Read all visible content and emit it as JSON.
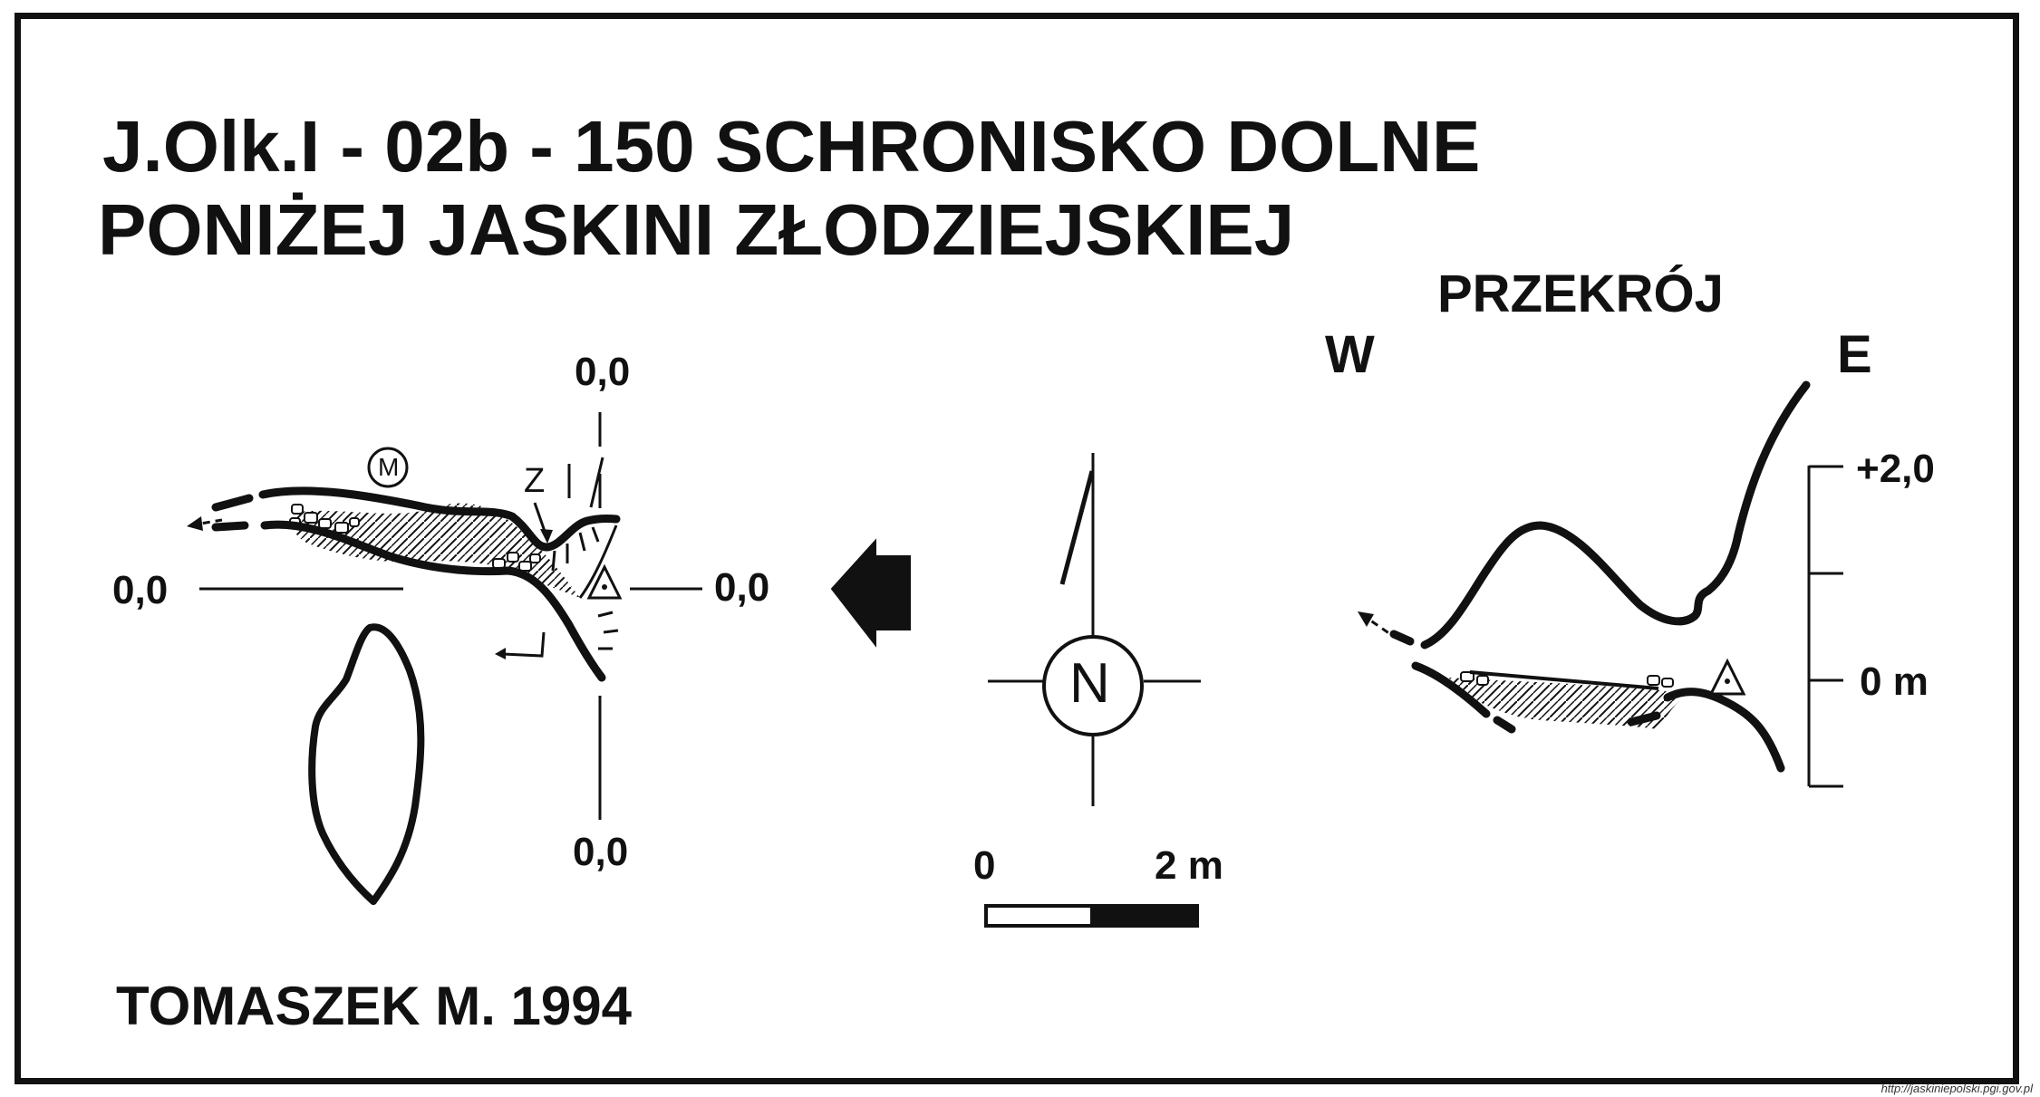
{
  "title": {
    "line1": "J.Olk.I - 02b - 150  SCHRONISKO DOLNE",
    "line2": "PONIŻEJ JASKINI ZŁODZIEJSKIEJ"
  },
  "plan": {
    "datum_top": "0,0",
    "datum_left": "0,0",
    "datum_right": "0,0",
    "datum_bottom": "0,0",
    "marker_m": "M",
    "marker_z": "Z"
  },
  "compass": {
    "north_letter": "N"
  },
  "scale_bar": {
    "start_label": "0",
    "end_label": "2 m"
  },
  "section": {
    "title": "PRZEKRÓJ",
    "west_label": "W",
    "east_label": "E",
    "upper_label": "+2,0",
    "zero_label": "0 m"
  },
  "author": "TOMASZEK M. 1994",
  "source": "http://jaskiniepolski.pgi.gov.pl",
  "colors": {
    "ink": "#111111",
    "background": "#ffffff"
  }
}
